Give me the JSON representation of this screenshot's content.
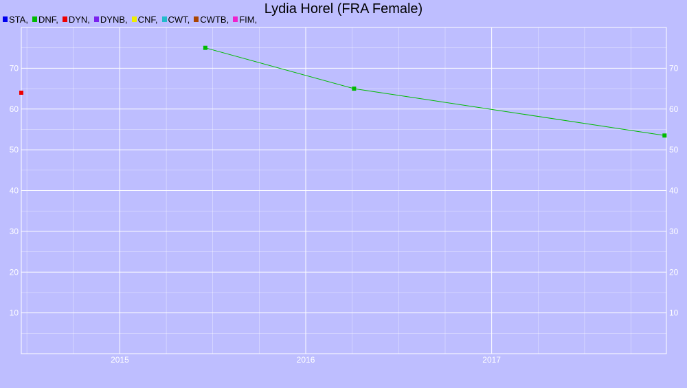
{
  "chart_data": {
    "type": "line",
    "title": "Lydia Horel (FRA Female)",
    "xlabel": "",
    "ylabel": "",
    "legend_position": "top-left",
    "grid": true,
    "x_axis": {
      "type": "time",
      "min": 2014.47,
      "max": 2017.94,
      "ticks": [
        2015,
        2016,
        2017
      ],
      "tick_labels": [
        "2015",
        "2016",
        "2017"
      ]
    },
    "y_axis": {
      "min": 0,
      "max": 80,
      "ticks": [
        10,
        20,
        30,
        40,
        50,
        60,
        70
      ],
      "tick_labels": [
        "10",
        "20",
        "30",
        "40",
        "50",
        "60",
        "70"
      ],
      "right_labels": true
    },
    "series": [
      {
        "name": "STA",
        "color": "#0000ee",
        "points": []
      },
      {
        "name": "DNF",
        "color": "#00bb00",
        "points": [
          {
            "x": 2015.46,
            "y": 75
          },
          {
            "x": 2016.26,
            "y": 65
          },
          {
            "x": 2017.93,
            "y": 53.5
          }
        ]
      },
      {
        "name": "DYN",
        "color": "#ee0000",
        "points": [
          {
            "x": 2014.47,
            "y": 64
          }
        ]
      },
      {
        "name": "DYNB",
        "color": "#7a22ee",
        "points": []
      },
      {
        "name": "CNF",
        "color": "#eeee00",
        "points": []
      },
      {
        "name": "CWT",
        "color": "#22bbcc",
        "points": []
      },
      {
        "name": "CWTB",
        "color": "#aa4400",
        "points": []
      },
      {
        "name": "FIM",
        "color": "#ee22cc",
        "points": []
      }
    ],
    "legend_suffix": ","
  }
}
